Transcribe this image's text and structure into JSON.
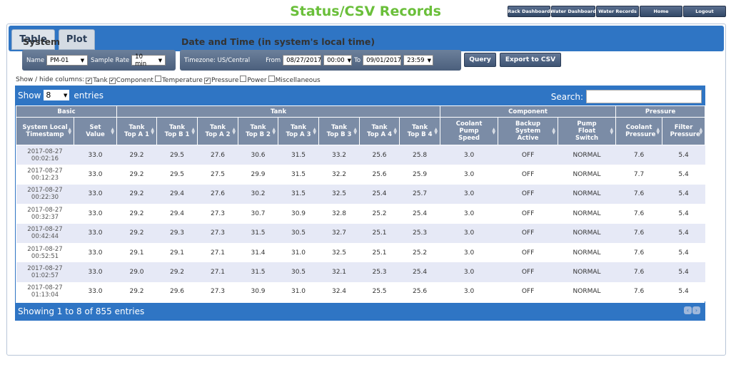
{
  "page": {
    "title": "Status/CSV Records"
  },
  "topnav": [
    "Rack Dashboard",
    "Water Dashboard",
    "Water Records",
    "Home",
    "Logout"
  ],
  "tabs": [
    "Table",
    "Plot"
  ],
  "system": {
    "heading": "System",
    "name_label": "Name",
    "name_value": "PM-01",
    "rate_label": "Sample Rate",
    "rate_value": "10 min"
  },
  "datetime": {
    "heading": "Date and Time (in system's local time)",
    "timezone_label": "Timezone: US/Central",
    "from_label": "From",
    "from_date": "08/27/2017",
    "from_time": "00:00",
    "to_label": "To",
    "to_date": "09/01/2017",
    "to_time": "23:59"
  },
  "buttons": {
    "query": "Query",
    "export": "Export to CSV"
  },
  "showhide": {
    "label": "Show / hide columns:",
    "options": [
      {
        "label": "Tank",
        "checked": true
      },
      {
        "label": "Component",
        "checked": true
      },
      {
        "label": "Temperature",
        "checked": false
      },
      {
        "label": "Pressure",
        "checked": true
      },
      {
        "label": "Power",
        "checked": false
      },
      {
        "label": "Miscellaneous",
        "checked": false
      }
    ]
  },
  "table": {
    "show_label": "Show",
    "entries_value": "8",
    "entries_label": "entries",
    "search_label": "Search:",
    "info": "Showing 1 to 8 of 855 entries",
    "groups": [
      "Basic",
      "Tank",
      "Component",
      "Pressure"
    ],
    "columns": [
      "System Local Timestamp",
      "Set Value",
      "Tank Top A 1",
      "Tank Top B 1",
      "Tank Top A 2",
      "Tank Top B 2",
      "Tank Top A 3",
      "Tank Top B 3",
      "Tank Top A 4",
      "Tank Top B 4",
      "Coolant Pump Speed",
      "Backup System Active",
      "Pump Float Switch",
      "Coolant Pressure",
      "Filter Pressure"
    ],
    "rows": [
      [
        "2017-08-27",
        "00:02:16",
        "33.0",
        "29.2",
        "29.5",
        "27.6",
        "30.6",
        "31.5",
        "33.2",
        "25.6",
        "25.8",
        "3.0",
        "OFF",
        "NORMAL",
        "7.6",
        "5.4"
      ],
      [
        "2017-08-27",
        "00:12:23",
        "33.0",
        "29.2",
        "29.5",
        "27.5",
        "29.9",
        "31.5",
        "32.2",
        "25.6",
        "25.9",
        "3.0",
        "OFF",
        "NORMAL",
        "7.7",
        "5.4"
      ],
      [
        "2017-08-27",
        "00:22:30",
        "33.0",
        "29.2",
        "29.4",
        "27.6",
        "30.2",
        "31.5",
        "32.5",
        "25.4",
        "25.7",
        "3.0",
        "OFF",
        "NORMAL",
        "7.6",
        "5.4"
      ],
      [
        "2017-08-27",
        "00:32:37",
        "33.0",
        "29.2",
        "29.4",
        "27.3",
        "30.7",
        "30.9",
        "32.8",
        "25.2",
        "25.4",
        "3.0",
        "OFF",
        "NORMAL",
        "7.6",
        "5.4"
      ],
      [
        "2017-08-27",
        "00:42:44",
        "33.0",
        "29.2",
        "29.3",
        "27.3",
        "31.5",
        "30.5",
        "32.7",
        "25.1",
        "25.3",
        "3.0",
        "OFF",
        "NORMAL",
        "7.6",
        "5.4"
      ],
      [
        "2017-08-27",
        "00:52:51",
        "33.0",
        "29.1",
        "29.1",
        "27.1",
        "31.4",
        "31.0",
        "32.5",
        "25.1",
        "25.2",
        "3.0",
        "OFF",
        "NORMAL",
        "7.6",
        "5.4"
      ],
      [
        "2017-08-27",
        "01:02:57",
        "33.0",
        "29.0",
        "29.2",
        "27.1",
        "31.5",
        "30.5",
        "32.1",
        "25.3",
        "25.4",
        "3.0",
        "OFF",
        "NORMAL",
        "7.6",
        "5.4"
      ],
      [
        "2017-08-27",
        "01:13:04",
        "33.0",
        "29.2",
        "29.6",
        "27.3",
        "30.9",
        "31.0",
        "32.4",
        "25.5",
        "25.6",
        "3.0",
        "OFF",
        "NORMAL",
        "7.6",
        "5.4"
      ]
    ]
  },
  "colors": {
    "accent": "#2f75c4",
    "title_green": "#6abf3a",
    "header_gray": "#7b8ca6",
    "row_stripe": "#e6e9f6"
  }
}
